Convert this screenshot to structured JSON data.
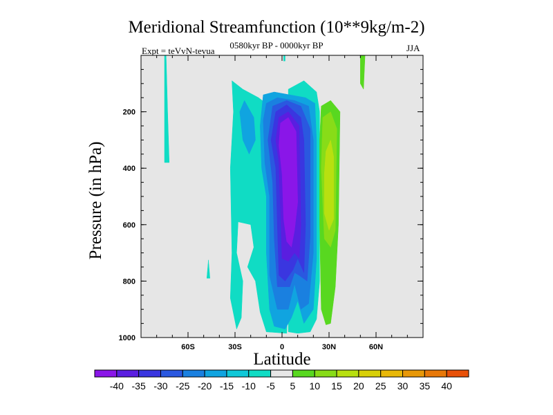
{
  "chart_data": {
    "type": "contour",
    "title": "Meridional Streamfunction (10**9kg/m-2)",
    "subtitle": "0580kyr BP - 0000kyr BP",
    "left_label": "Expt = teVvN-tevua",
    "right_label": "JJA",
    "xlabel": "Latitude",
    "ylabel": "Pressure (in hPa)",
    "xlim": [
      -90,
      90
    ],
    "ylim": [
      1000,
      0
    ],
    "x_ticks": [
      {
        "value": -60,
        "label": "60S"
      },
      {
        "value": -30,
        "label": "30S"
      },
      {
        "value": 0,
        "label": "0"
      },
      {
        "value": 30,
        "label": "30N"
      },
      {
        "value": 60,
        "label": "60N"
      }
    ],
    "y_ticks": [
      {
        "value": 200,
        "label": "200"
      },
      {
        "value": 400,
        "label": "400"
      },
      {
        "value": 600,
        "label": "600"
      },
      {
        "value": 800,
        "label": "800"
      },
      {
        "value": 1000,
        "label": "1000"
      }
    ],
    "background_color": "#e6e6e6",
    "colorbar": {
      "levels": [
        -40,
        -35,
        -30,
        -25,
        -20,
        -15,
        -10,
        -5,
        5,
        10,
        15,
        20,
        25,
        30,
        35,
        40
      ],
      "colors": [
        "#8a16e8",
        "#5a1ee0",
        "#3a36e0",
        "#2a58e0",
        "#1a80e0",
        "#10a4e0",
        "#10c8d8",
        "#10dcc4",
        "#e6e6e6",
        "#58d820",
        "#88dc18",
        "#b8e010",
        "#d8d008",
        "#e8b808",
        "#e89808",
        "#e87808",
        "#e85008"
      ]
    },
    "regions": [
      {
        "level": -10,
        "color": "#10dcc4",
        "points": [
          [
            -74,
            0
          ],
          [
            -73,
            200
          ],
          [
            -72,
            380
          ],
          [
            -75,
            380
          ],
          [
            -75,
            0
          ]
        ]
      },
      {
        "level": -10,
        "color": "#10dcc4",
        "points": [
          [
            -47,
            725
          ],
          [
            -46,
            790
          ],
          [
            -48,
            790
          ]
        ]
      },
      {
        "level": -10,
        "color": "#10dcc4",
        "points": [
          [
            -32,
            90
          ],
          [
            -25,
            120
          ],
          [
            -15,
            150
          ],
          [
            -8,
            180
          ],
          [
            -5,
            230
          ],
          [
            -5,
            500
          ],
          [
            0,
            550
          ],
          [
            2,
            700
          ],
          [
            4,
            860
          ],
          [
            3,
            985
          ],
          [
            -10,
            980
          ],
          [
            -14,
            910
          ],
          [
            -17,
            800
          ],
          [
            -22,
            750
          ],
          [
            -18,
            680
          ],
          [
            -20,
            600
          ],
          [
            -28,
            590
          ],
          [
            -29,
            700
          ],
          [
            -25,
            800
          ],
          [
            -26,
            930
          ],
          [
            -29,
            970
          ],
          [
            -33,
            860
          ],
          [
            -32,
            700
          ],
          [
            -33,
            400
          ],
          [
            -31,
            200
          ]
        ]
      },
      {
        "level": -10,
        "color": "#10dcc4",
        "points": [
          [
            4,
            120
          ],
          [
            14,
            90
          ],
          [
            22,
            130
          ],
          [
            24,
            200
          ],
          [
            24,
            800
          ],
          [
            22,
            935
          ],
          [
            18,
            980
          ],
          [
            10,
            985
          ],
          [
            4,
            980
          ]
        ]
      },
      {
        "level": -10,
        "color": "#10dcc4",
        "points": [
          [
            1,
            0
          ],
          [
            2,
            0
          ],
          [
            2,
            20
          ],
          [
            1,
            20
          ]
        ]
      },
      {
        "level": -15,
        "color": "#10a4e0",
        "points": [
          [
            -27,
            200
          ],
          [
            -24,
            160
          ],
          [
            -18,
            220
          ],
          [
            -17,
            300
          ],
          [
            -21,
            350
          ],
          [
            -25,
            300
          ]
        ]
      },
      {
        "level": -15,
        "color": "#10a4e0",
        "points": [
          [
            -12,
            140
          ],
          [
            -5,
            130
          ],
          [
            5,
            140
          ],
          [
            15,
            150
          ],
          [
            21,
            170
          ],
          [
            22,
            300
          ],
          [
            22,
            720
          ],
          [
            20,
            900
          ],
          [
            14,
            950
          ],
          [
            10,
            870
          ],
          [
            6,
            930
          ],
          [
            2,
            970
          ],
          [
            -5,
            960
          ],
          [
            -8,
            900
          ],
          [
            -10,
            700
          ],
          [
            -10,
            500
          ],
          [
            -13,
            400
          ],
          [
            -14,
            250
          ]
        ]
      },
      {
        "level": -20,
        "color": "#1a80e0",
        "points": [
          [
            -10,
            170
          ],
          [
            -3,
            150
          ],
          [
            8,
            160
          ],
          [
            17,
            180
          ],
          [
            20,
            300
          ],
          [
            20,
            700
          ],
          [
            17,
            880
          ],
          [
            12,
            900
          ],
          [
            8,
            810
          ],
          [
            4,
            900
          ],
          [
            -3,
            900
          ],
          [
            -8,
            780
          ],
          [
            -8,
            500
          ],
          [
            -11,
            380
          ],
          [
            -12,
            230
          ]
        ]
      },
      {
        "level": -25,
        "color": "#2a58e0",
        "points": [
          [
            -6,
            180
          ],
          [
            3,
            160
          ],
          [
            12,
            180
          ],
          [
            18,
            260
          ],
          [
            18,
            640
          ],
          [
            16,
            800
          ],
          [
            11,
            780
          ],
          [
            8,
            770
          ],
          [
            5,
            820
          ],
          [
            -3,
            820
          ],
          [
            -5,
            650
          ],
          [
            -6,
            450
          ],
          [
            -9,
            300
          ]
        ]
      },
      {
        "level": -30,
        "color": "#3a36e0",
        "points": [
          [
            -4,
            200
          ],
          [
            3,
            175
          ],
          [
            12,
            220
          ],
          [
            14,
            300
          ],
          [
            15,
            600
          ],
          [
            14,
            770
          ],
          [
            10,
            720
          ],
          [
            7,
            760
          ],
          [
            2,
            800
          ],
          [
            -2,
            780
          ],
          [
            -3,
            600
          ],
          [
            -4,
            400
          ],
          [
            -7,
            300
          ]
        ]
      },
      {
        "level": -35,
        "color": "#5a1ee0",
        "points": [
          [
            -2,
            220
          ],
          [
            4,
            200
          ],
          [
            11,
            250
          ],
          [
            12,
            600
          ],
          [
            11,
            720
          ],
          [
            8,
            700
          ],
          [
            4,
            730
          ],
          [
            0,
            720
          ],
          [
            -1,
            550
          ],
          [
            -2,
            380
          ],
          [
            -4,
            300
          ]
        ]
      },
      {
        "level": -40,
        "color": "#8a16e8",
        "points": [
          [
            -1,
            240
          ],
          [
            4,
            220
          ],
          [
            9,
            270
          ],
          [
            10,
            520
          ],
          [
            8,
            620
          ],
          [
            6,
            680
          ],
          [
            3,
            660
          ],
          [
            1,
            580
          ],
          [
            0,
            420
          ],
          [
            -2,
            320
          ]
        ]
      },
      {
        "level": 5,
        "color": "#58d820",
        "points": [
          [
            25,
            180
          ],
          [
            31,
            160
          ],
          [
            37,
            200
          ],
          [
            36,
            600
          ],
          [
            34,
            820
          ],
          [
            31,
            950
          ],
          [
            28,
            955
          ],
          [
            25,
            900
          ],
          [
            24,
            600
          ],
          [
            24,
            300
          ]
        ]
      },
      {
        "level": 5,
        "color": "#58d820",
        "points": [
          [
            50,
            0
          ],
          [
            53,
            0
          ],
          [
            52,
            120
          ],
          [
            50,
            100
          ]
        ]
      },
      {
        "level": 10,
        "color": "#88dc18",
        "points": [
          [
            26,
            220
          ],
          [
            31,
            200
          ],
          [
            35,
            260
          ],
          [
            34,
            620
          ],
          [
            31,
            680
          ],
          [
            27,
            650
          ],
          [
            25,
            400
          ]
        ]
      },
      {
        "level": 15,
        "color": "#b8e010",
        "points": [
          [
            28,
            340
          ],
          [
            31,
            300
          ],
          [
            33,
            360
          ],
          [
            33,
            580
          ],
          [
            30,
            620
          ],
          [
            27,
            560
          ],
          [
            27,
            420
          ]
        ]
      }
    ]
  }
}
